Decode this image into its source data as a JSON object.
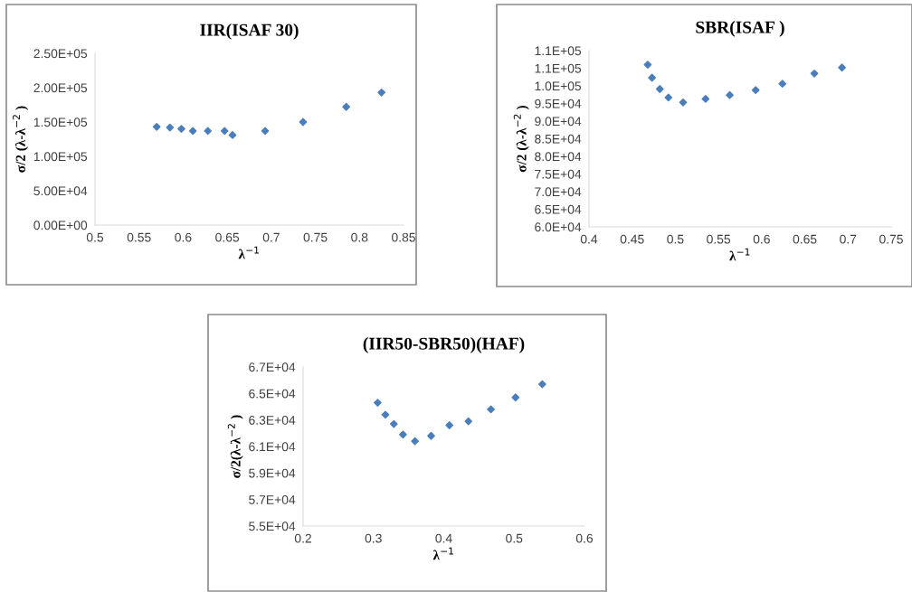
{
  "chart_data": [
    {
      "type": "scatter",
      "title": "IIR(ISAF 30)",
      "xlabel": "λ$^{−1}$",
      "ylabel": "σ/2 (λ-λ$^{−2}$ )",
      "marker": "diamond",
      "grid": false,
      "x": [
        0.57,
        0.585,
        0.598,
        0.611,
        0.628,
        0.647,
        0.656,
        0.693,
        0.736,
        0.785,
        0.825
      ],
      "series": [
        {
          "color": "#4a7ebb",
          "values": [
            143000,
            142000,
            140000,
            137000,
            137000,
            137000,
            131000,
            137000,
            150000,
            172000,
            193000
          ]
        }
      ],
      "xlim": [
        0.5,
        0.85
      ],
      "xticks": [
        0.5,
        0.55,
        0.6,
        0.65,
        0.7,
        0.75,
        0.8,
        0.85
      ],
      "ylim": [
        0,
        250000
      ],
      "yticks": [
        {
          "value": 0,
          "label": "0.00E+00"
        },
        {
          "value": 50000,
          "label": "5.00E+04"
        },
        {
          "value": 100000,
          "label": "1.00E+05"
        },
        {
          "value": 150000,
          "label": "1.50E+05"
        },
        {
          "value": 200000,
          "label": "2.00E+05"
        },
        {
          "value": 250000,
          "label": "2.50E+05"
        }
      ]
    },
    {
      "type": "scatter",
      "title": "SBR(ISAF )",
      "xlabel": "λ$^{−1}$",
      "ylabel": "σ/2 (λ-λ$^{−2}$ )",
      "marker": "diamond",
      "grid": false,
      "x": [
        0.468,
        0.473,
        0.482,
        0.492,
        0.509,
        0.535,
        0.563,
        0.593,
        0.624,
        0.661,
        0.693
      ],
      "series": [
        {
          "color": "#4a7ebb",
          "values": [
            106000,
            102300,
            99100,
            96700,
            95300,
            96300,
            97400,
            98800,
            100600,
            103500,
            105200
          ]
        }
      ],
      "xlim": [
        0.4,
        0.75
      ],
      "xticks": [
        0.4,
        0.45,
        0.5,
        0.55,
        0.6,
        0.65,
        0.7,
        0.75
      ],
      "ylim": [
        60000,
        110000
      ],
      "yticks": [
        {
          "value": 60000,
          "label": "6.0E+04"
        },
        {
          "value": 65000,
          "label": "6.5E+04"
        },
        {
          "value": 70000,
          "label": "7.0E+04"
        },
        {
          "value": 75000,
          "label": "7.5E+04"
        },
        {
          "value": 80000,
          "label": "8.0E+04"
        },
        {
          "value": 85000,
          "label": "8.5E+04"
        },
        {
          "value": 90000,
          "label": "9.0E+04"
        },
        {
          "value": 95000,
          "label": "9.5E+04"
        },
        {
          "value": 100000,
          "label": "1.0E+05"
        },
        {
          "value": 105000,
          "label": "1.1E+05"
        },
        {
          "value": 110000,
          "label": "1.1E+05"
        }
      ]
    },
    {
      "type": "scatter",
      "title": "(IIR50-SBR50)(HAF)",
      "xlabel": "λ$^{−1}$",
      "ylabel": "σ/2(λ-λ$^{−2}$ )",
      "marker": "diamond",
      "grid": false,
      "x": [
        0.306,
        0.317,
        0.329,
        0.342,
        0.359,
        0.382,
        0.408,
        0.435,
        0.467,
        0.502,
        0.54
      ],
      "series": [
        {
          "color": "#4a7ebb",
          "values": [
            64300,
            63400,
            62700,
            61900,
            61400,
            61800,
            62600,
            62900,
            63800,
            64700,
            65700
          ]
        }
      ],
      "xlim": [
        0.2,
        0.6
      ],
      "xticks": [
        0.2,
        0.3,
        0.4,
        0.5,
        0.6
      ],
      "ylim": [
        55000,
        67000
      ],
      "yticks": [
        {
          "value": 55000,
          "label": "5.5E+04"
        },
        {
          "value": 57000,
          "label": "5.7E+04"
        },
        {
          "value": 59000,
          "label": "5.9E+04"
        },
        {
          "value": 61000,
          "label": "6.1E+04"
        },
        {
          "value": 63000,
          "label": "6.3E+04"
        },
        {
          "value": 65000,
          "label": "6.5E+04"
        },
        {
          "value": 67000,
          "label": "6.7E+04"
        }
      ]
    }
  ]
}
